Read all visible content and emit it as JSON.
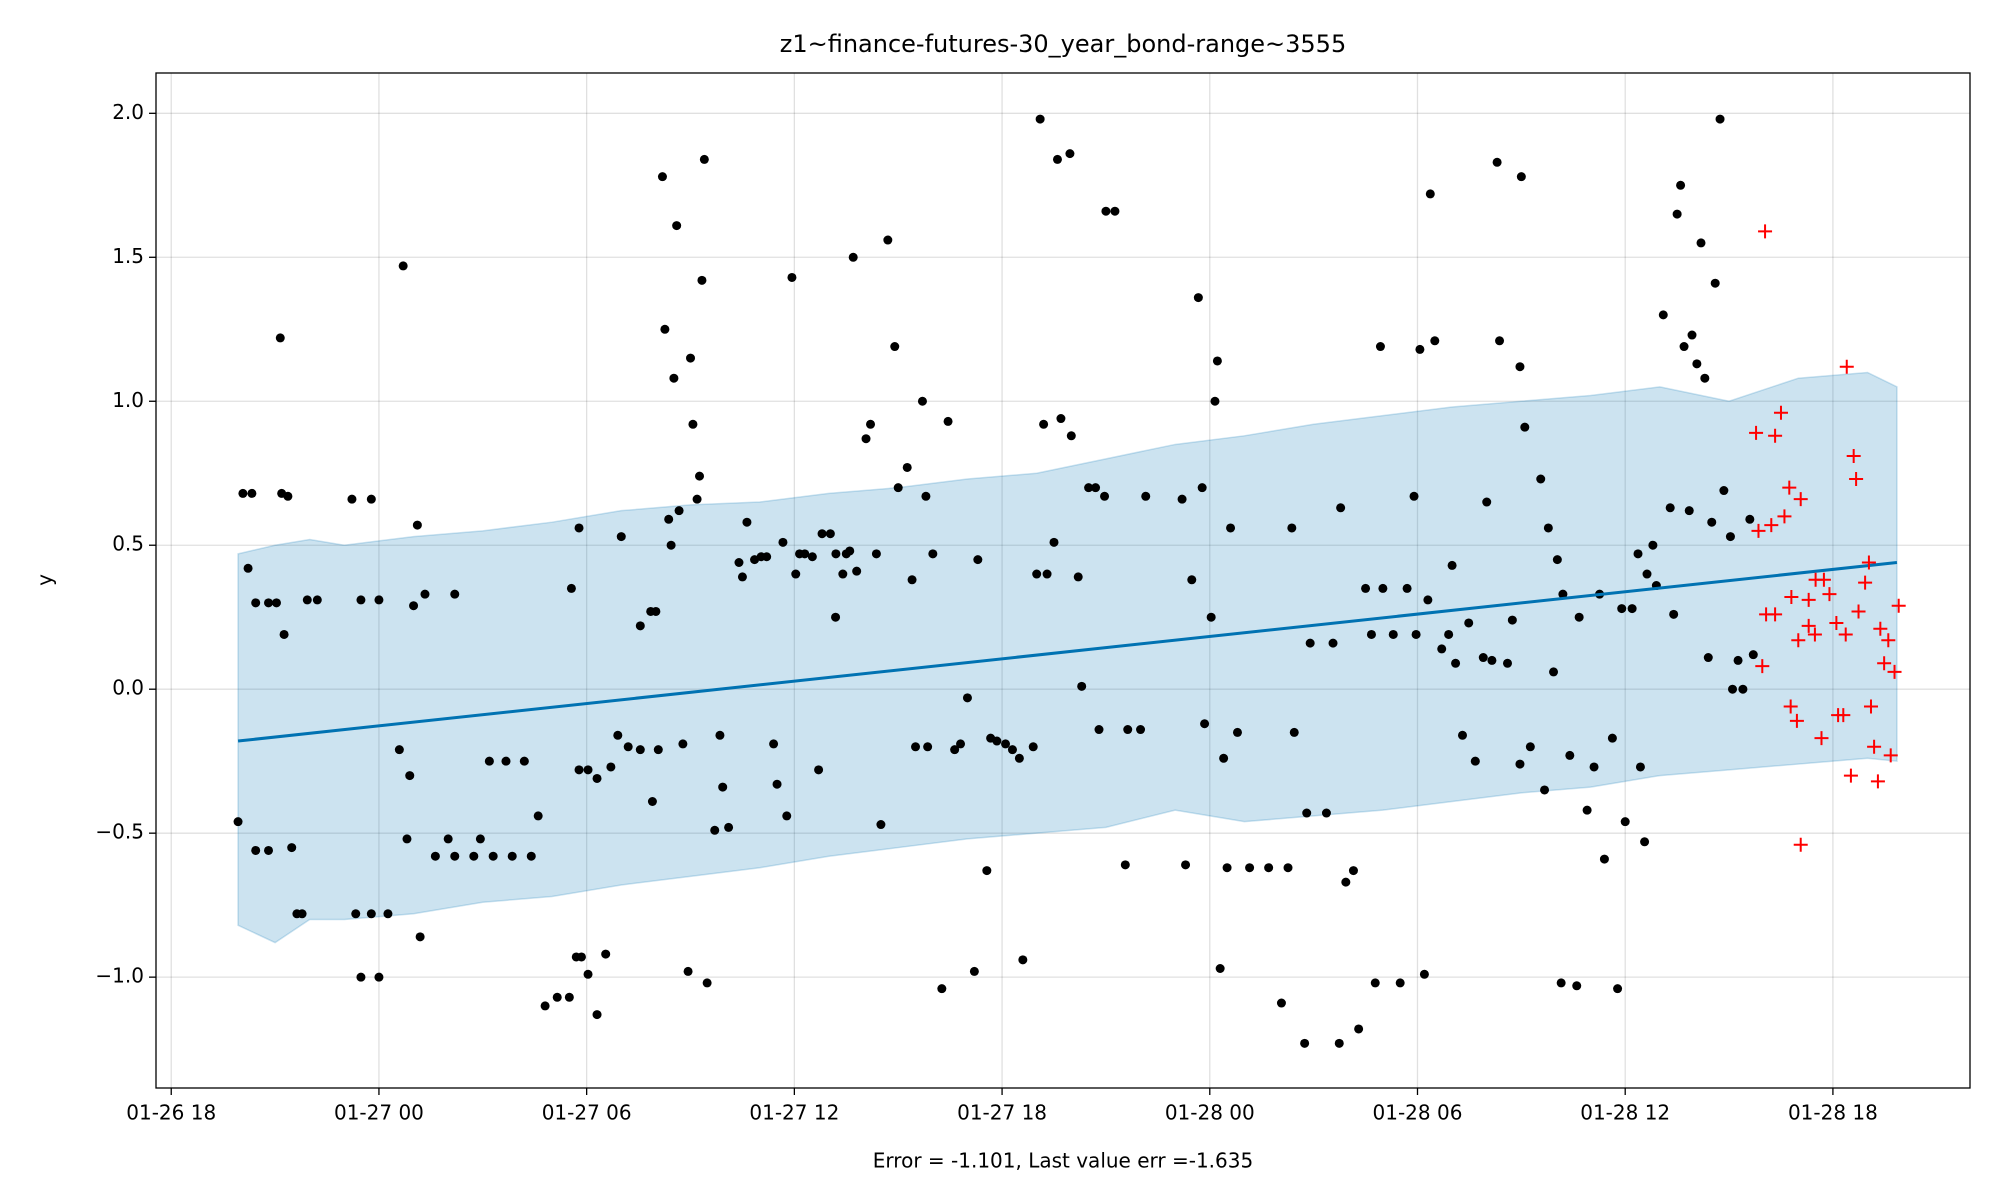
{
  "chart_data": {
    "type": "forecast",
    "title": "z1~finance-futures-30_year_bond-range~3555",
    "xlabel": "Error = -1.101, Last value err =-1.635",
    "ylabel": "y",
    "xlim": [
      -0.44,
      51.96
    ],
    "ylim": [
      -1.385,
      2.14
    ],
    "xticks": [
      {
        "value": 0,
        "label": "01-26 18"
      },
      {
        "value": 6,
        "label": "01-27 00"
      },
      {
        "value": 12,
        "label": "01-27 06"
      },
      {
        "value": 18,
        "label": "01-27 12"
      },
      {
        "value": 24,
        "label": "01-27 18"
      },
      {
        "value": 30,
        "label": "01-28 00"
      },
      {
        "value": 36,
        "label": "01-28 06"
      },
      {
        "value": 42,
        "label": "01-28 12"
      },
      {
        "value": 48,
        "label": "01-28 18"
      }
    ],
    "yticks": [
      {
        "value": -1,
        "label": "−1.0"
      },
      {
        "value": -0.5,
        "label": "−0.5"
      },
      {
        "value": 0,
        "label": "0.0"
      },
      0.5,
      {
        "value": 1,
        "label": "1.0"
      },
      1.5,
      {
        "value": 2,
        "label": "2.0"
      }
    ],
    "grid": true,
    "band": {
      "color": "#0072b2",
      "x": [
        1.93,
        3,
        4,
        5,
        7,
        9,
        11,
        13,
        15,
        17,
        19,
        21,
        23,
        25,
        27,
        29,
        31,
        33,
        35,
        37,
        39,
        41,
        43,
        45,
        47,
        49,
        49.85
      ],
      "upper": [
        0.47,
        0.5,
        0.52,
        0.5,
        0.53,
        0.55,
        0.58,
        0.62,
        0.64,
        0.65,
        0.68,
        0.7,
        0.73,
        0.75,
        0.8,
        0.85,
        0.88,
        0.92,
        0.95,
        0.98,
        1.0,
        1.02,
        1.05,
        1.0,
        1.08,
        1.1,
        1.05
      ],
      "lower": [
        -0.82,
        -0.88,
        -0.8,
        -0.8,
        -0.78,
        -0.74,
        -0.72,
        -0.68,
        -0.65,
        -0.62,
        -0.58,
        -0.55,
        -0.52,
        -0.5,
        -0.48,
        -0.42,
        -0.46,
        -0.44,
        -0.42,
        -0.39,
        -0.36,
        -0.34,
        -0.3,
        -0.28,
        -0.26,
        -0.24,
        -0.25
      ]
    },
    "forecast": {
      "color": "#0072b2",
      "x": [
        1.93,
        49.85
      ],
      "values": [
        -0.18,
        0.44
      ]
    },
    "observed": {
      "color": "#000000",
      "marker": "dot",
      "x": [
        1.93,
        2.07,
        2.33,
        2.22,
        2.44,
        2.81,
        3.04,
        2.44,
        2.81,
        3.15,
        3.19,
        3.37,
        3.26,
        3.48,
        3.63,
        3.78,
        3.93,
        4.22,
        5.22,
        5.78,
        5.48,
        6.0,
        5.33,
        5.48,
        6.0,
        5.78,
        6.26,
        6.7,
        6.59,
        6.89,
        7.0,
        7.11,
        7.33,
        6.81,
        7.19,
        7.63,
        8.19,
        8.74,
        9.3,
        8.19,
        8.0,
        8.93,
        9.19,
        9.67,
        10.2,
        9.85,
        10.4,
        10.6,
        10.8,
        11.15,
        11.5,
        11.7,
        11.85,
        12.04,
        12.3,
        12.55,
        11.56,
        11.78,
        11.78,
        12.04,
        12.3,
        12.7,
        13.0,
        12.9,
        13.2,
        13.55,
        13.9,
        14.07,
        13.55,
        13.85,
        14.0,
        14.19,
        14.26,
        14.37,
        14.44,
        14.52,
        14.6,
        14.67,
        14.78,
        15.0,
        15.07,
        15.19,
        15.26,
        15.33,
        15.4,
        15.48,
        14.93,
        15.7,
        15.85,
        15.93,
        16.1,
        16.4,
        16.5,
        16.63,
        16.85,
        17.04,
        17.2,
        17.4,
        17.5,
        17.67,
        17.78,
        17.93,
        18.04,
        18.15,
        18.3,
        18.52,
        18.7,
        18.8,
        19.04,
        19.19,
        19.2,
        19.4,
        19.5,
        19.7,
        19.6,
        19.8,
        20.07,
        20.2,
        20.37,
        20.5,
        20.7,
        20.9,
        21.0,
        21.26,
        21.4,
        21.5,
        21.7,
        21.8,
        21.85,
        22.0,
        22.26,
        22.44,
        22.63,
        22.8,
        23.0,
        23.2,
        23.3,
        23.56,
        23.67,
        23.85,
        24.1,
        24.3,
        24.5,
        24.6,
        24.9,
        25.0,
        25.1,
        25.2,
        25.3,
        25.5,
        25.6,
        25.7,
        25.96,
        26.0,
        26.2,
        26.3,
        26.5,
        26.7,
        26.8,
        27.0,
        27.26,
        26.96,
        27.56,
        27.63,
        28.0,
        28.15,
        29.3,
        29.2,
        29.48,
        29.67,
        29.78,
        29.85,
        30.04,
        30.15,
        30.22,
        30.3,
        30.4,
        30.5,
        30.6,
        30.8,
        31.15,
        31.7,
        32.07,
        32.26,
        32.44,
        32.37,
        32.74,
        32.9,
        32.8,
        33.37,
        33.56,
        33.74,
        33.78,
        33.93,
        34.15,
        34.3,
        34.5,
        34.67,
        34.78,
        34.93,
        35.0,
        35.3,
        35.5,
        35.7,
        35.9,
        35.96,
        36.07,
        36.2,
        36.3,
        36.37,
        36.5,
        36.7,
        36.9,
        37.0,
        37.1,
        37.3,
        37.48,
        37.67,
        37.9,
        38.0,
        38.15,
        38.3,
        38.37,
        38.6,
        38.74,
        38.96,
        39.0,
        39.1,
        38.96,
        39.26,
        39.56,
        39.67,
        39.78,
        39.93,
        40.04,
        40.15,
        40.2,
        40.4,
        40.6,
        40.67,
        40.9,
        41.1,
        41.26,
        41.4,
        41.63,
        41.78,
        41.9,
        42.0,
        42.2,
        42.37,
        42.44,
        42.56,
        42.63,
        42.8,
        42.9,
        43.1,
        43.3,
        43.4,
        43.5,
        43.6,
        43.7,
        43.85,
        43.93,
        44.07,
        44.19,
        44.3,
        44.4,
        44.5,
        44.6,
        44.74,
        44.85,
        45.04,
        45.1,
        45.26,
        45.4,
        45.6,
        45.7
      ],
      "values": [
        -0.46,
        0.68,
        0.68,
        0.42,
        0.3,
        0.3,
        0.3,
        -0.56,
        -0.56,
        1.22,
        0.68,
        0.67,
        0.19,
        -0.55,
        -0.78,
        -0.78,
        0.31,
        0.31,
        0.66,
        0.66,
        0.31,
        0.31,
        -0.78,
        -1.0,
        -1.0,
        -0.78,
        -0.78,
        1.47,
        -0.21,
        -0.3,
        0.29,
        0.57,
        0.33,
        -0.52,
        -0.86,
        -0.58,
        -0.58,
        -0.58,
        -0.58,
        0.33,
        -0.52,
        -0.52,
        -0.25,
        -0.25,
        -0.25,
        -0.58,
        -0.58,
        -0.44,
        -1.1,
        -1.07,
        -1.07,
        -0.93,
        -0.93,
        -0.99,
        -1.13,
        -0.92,
        0.35,
        0.56,
        -0.28,
        -0.28,
        -0.31,
        -0.27,
        0.53,
        -0.16,
        -0.2,
        -0.21,
        -0.39,
        -0.21,
        0.22,
        0.27,
        0.27,
        1.78,
        1.25,
        0.59,
        0.5,
        1.08,
        1.61,
        0.62,
        -0.19,
        1.15,
        0.92,
        0.66,
        0.74,
        1.42,
        1.84,
        -1.02,
        -0.98,
        -0.49,
        -0.16,
        -0.34,
        -0.48,
        0.44,
        0.39,
        0.58,
        0.45,
        0.46,
        0.46,
        -0.19,
        -0.33,
        0.51,
        -0.44,
        1.43,
        0.4,
        0.47,
        0.47,
        0.46,
        -0.28,
        0.54,
        0.54,
        0.25,
        0.47,
        0.4,
        0.47,
        1.5,
        0.48,
        0.41,
        0.87,
        0.92,
        0.47,
        -0.47,
        1.56,
        1.19,
        0.7,
        0.77,
        0.38,
        -0.2,
        1.0,
        0.67,
        -0.2,
        0.47,
        -1.04,
        0.93,
        -0.21,
        -0.19,
        -0.03,
        -0.98,
        0.45,
        -0.63,
        -0.17,
        -0.18,
        -0.19,
        -0.21,
        -0.24,
        -0.94,
        -0.2,
        0.4,
        1.98,
        0.92,
        0.4,
        0.51,
        1.84,
        0.94,
        1.86,
        0.88,
        0.39,
        0.01,
        0.7,
        0.7,
        -0.14,
        1.66,
        1.66,
        0.67,
        -0.61,
        -0.14,
        -0.14,
        0.67,
        -0.61,
        0.66,
        0.38,
        1.36,
        0.7,
        -0.12,
        0.25,
        1.0,
        1.14,
        -0.97,
        -0.24,
        -0.62,
        0.56,
        -0.15,
        -0.62,
        -0.62,
        -1.09,
        -0.62,
        -0.15,
        0.56,
        -1.23,
        0.16,
        -0.43,
        -0.43,
        0.16,
        -1.23,
        0.63,
        -0.67,
        -0.63,
        -1.18,
        0.35,
        0.19,
        -1.02,
        1.19,
        0.35,
        0.19,
        -1.02,
        0.35,
        0.67,
        0.19,
        1.18,
        -0.99,
        0.31,
        1.72,
        1.21,
        0.14,
        0.19,
        0.43,
        0.09,
        -0.16,
        0.23,
        -0.25,
        0.11,
        0.65,
        0.1,
        1.83,
        1.21,
        0.09,
        0.24,
        1.12,
        1.78,
        0.91,
        -0.26,
        -0.2,
        0.73,
        -0.35,
        0.56,
        0.06,
        0.45,
        -1.02,
        0.33,
        -0.23,
        -1.03,
        0.25,
        -0.42,
        -0.27,
        0.33,
        -0.59,
        -0.17,
        -1.04,
        0.28,
        -0.46,
        0.28,
        0.47,
        -0.27,
        -0.53,
        0.4,
        0.5,
        0.36,
        1.3,
        0.63,
        0.26,
        1.65,
        1.75,
        1.19,
        0.62,
        1.23,
        1.13,
        1.55,
        1.08,
        0.11,
        0.58,
        1.41,
        1.98,
        0.69,
        0.53,
        0.0,
        0.1,
        0.0,
        0.59,
        0.12
      ]
    },
    "future": {
      "color": "#ff0000",
      "marker": "plus",
      "x": [
        46.04,
        45.78,
        46.33,
        46.5,
        45.85,
        46.22,
        46.6,
        46.74,
        47.07,
        46.07,
        46.33,
        45.96,
        46.8,
        47.3,
        47.5,
        47.74,
        47.9,
        47.0,
        47.3,
        47.48,
        48.1,
        48.37,
        46.78,
        46.96,
        47.67,
        48.15,
        48.3,
        47.07,
        48.4,
        48.6,
        48.67,
        48.52,
        48.74,
        48.93,
        49.04,
        49.1,
        49.19,
        49.3,
        49.37,
        49.48,
        49.6,
        49.67,
        49.78,
        49.9
      ],
      "values": [
        1.59,
        0.89,
        0.88,
        0.96,
        0.55,
        0.57,
        0.6,
        0.7,
        0.66,
        0.26,
        0.26,
        0.08,
        0.32,
        0.31,
        0.38,
        0.38,
        0.33,
        0.17,
        0.22,
        0.19,
        0.23,
        0.19,
        -0.06,
        -0.11,
        -0.17,
        -0.09,
        -0.09,
        -0.54,
        1.12,
        0.81,
        0.73,
        -0.3,
        0.27,
        0.37,
        0.44,
        -0.06,
        -0.2,
        -0.32,
        0.21,
        0.09,
        0.17,
        -0.23,
        0.06,
        0.29
      ]
    }
  }
}
